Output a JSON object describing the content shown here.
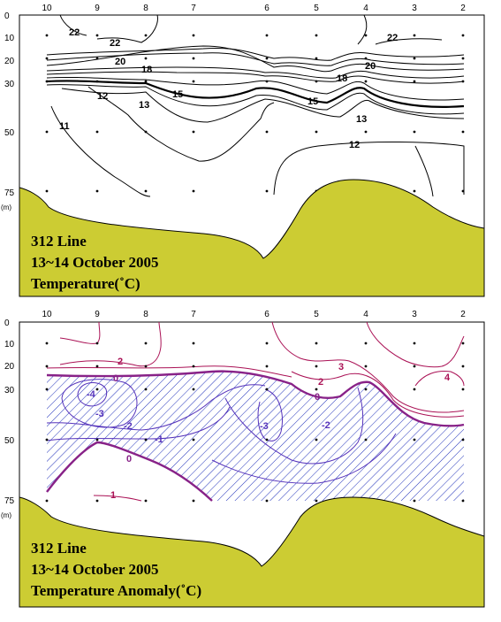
{
  "chart_data": [
    {
      "type": "contour",
      "caption": [
        "312 Line",
        "13~14 October 2005",
        "Temperature(˚C)"
      ],
      "x_stations": [
        "10",
        "9",
        "8",
        "7",
        "6",
        "5",
        "4",
        "3",
        "2"
      ],
      "y_depths": [
        "0",
        "10",
        "20",
        "30",
        "50",
        "75"
      ],
      "y_unit": "(m)",
      "contour_labels": [
        "22",
        "22",
        "22",
        "20",
        "20",
        "18",
        "18",
        "15",
        "15",
        "13",
        "13",
        "12",
        "12",
        "11"
      ],
      "colors": {
        "contour": "#000000",
        "bottom": "#cccc33"
      }
    },
    {
      "type": "contour",
      "caption": [
        "312 Line",
        "13~14 October 2005",
        "Temperature Anomaly(˚C)"
      ],
      "x_stations": [
        "10",
        "9",
        "8",
        "7",
        "6",
        "5",
        "4",
        "3",
        "2"
      ],
      "y_depths": [
        "0",
        "10",
        "20",
        "30",
        "50",
        "75"
      ],
      "y_unit": "(m)",
      "contour_labels": [
        "2",
        "0",
        "3",
        "4",
        "2",
        "0",
        "-4",
        "-3",
        "-2",
        "-1",
        "-3",
        "-2",
        "0",
        "1"
      ],
      "colors": {
        "positive": "#aa1155",
        "zero": "#882288",
        "negative": "#5533bb",
        "hatch": "#2233bb",
        "bottom": "#cccc33"
      }
    }
  ]
}
